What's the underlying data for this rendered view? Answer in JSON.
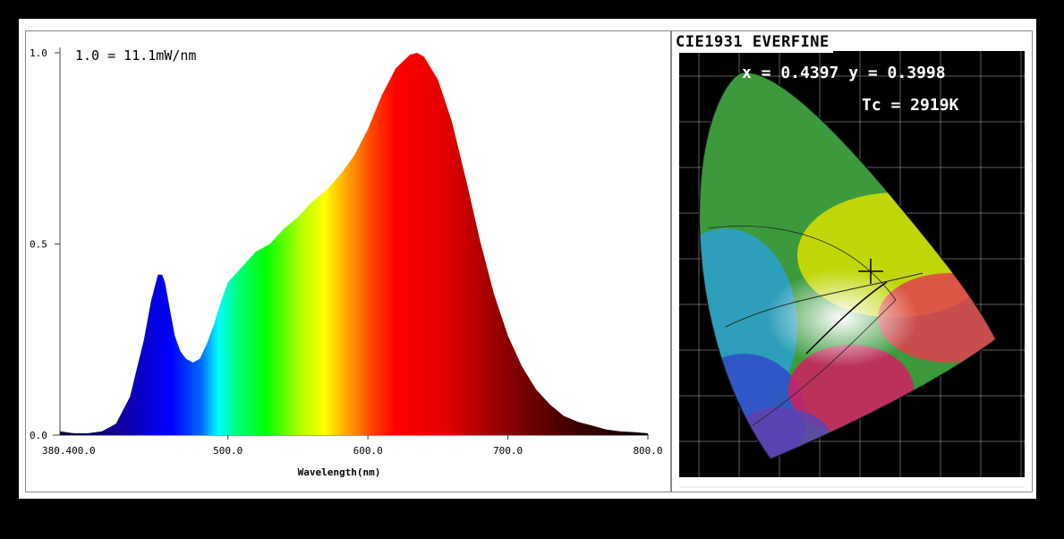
{
  "spectrum": {
    "annotation": "1.0 = 11.1mW/nm",
    "xlabel": "Wavelength(nm)",
    "x_ticks": [
      "380.400.0",
      "500.0",
      "600.0",
      "700.0",
      "800.0"
    ],
    "y_ticks": [
      "1.0",
      "0.5",
      "0.0"
    ]
  },
  "cie": {
    "title": "CIE1931 EVERFINE",
    "xy_readout": "x = 0.4397 y = 0.3998",
    "tc_readout": "Tc = 2919K"
  },
  "chart_data": {
    "type": "area",
    "title": "",
    "xlabel": "Wavelength(nm)",
    "ylabel": "",
    "xlim": [
      380,
      800
    ],
    "ylim": [
      0,
      1.0
    ],
    "x": [
      380,
      390,
      400,
      410,
      420,
      430,
      440,
      445,
      450,
      453,
      455,
      458,
      462,
      466,
      470,
      475,
      480,
      485,
      490,
      495,
      500,
      505,
      510,
      520,
      530,
      540,
      550,
      560,
      570,
      580,
      590,
      600,
      610,
      620,
      630,
      635,
      640,
      650,
      660,
      670,
      680,
      690,
      700,
      710,
      720,
      730,
      740,
      750,
      760,
      770,
      780,
      790,
      800
    ],
    "values": [
      0.01,
      0.005,
      0.005,
      0.01,
      0.03,
      0.1,
      0.25,
      0.35,
      0.42,
      0.42,
      0.4,
      0.34,
      0.26,
      0.22,
      0.2,
      0.19,
      0.2,
      0.24,
      0.29,
      0.35,
      0.4,
      0.42,
      0.44,
      0.48,
      0.5,
      0.54,
      0.57,
      0.61,
      0.64,
      0.68,
      0.73,
      0.8,
      0.89,
      0.96,
      0.995,
      1.0,
      0.99,
      0.93,
      0.82,
      0.67,
      0.51,
      0.37,
      0.26,
      0.18,
      0.12,
      0.08,
      0.05,
      0.035,
      0.025,
      0.015,
      0.01,
      0.008,
      0.005
    ]
  },
  "colors": {
    "background": "#000000",
    "panel": "#ffffff",
    "cie_bg": "#000000"
  }
}
